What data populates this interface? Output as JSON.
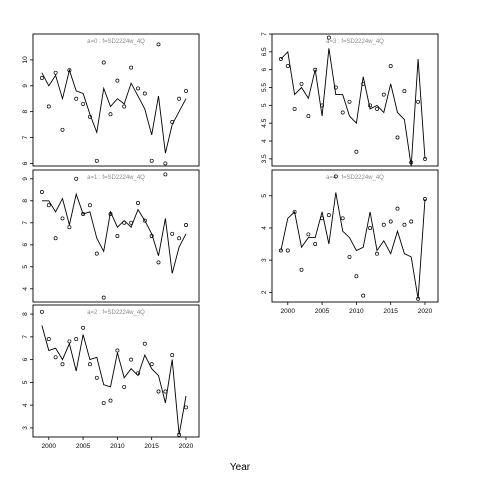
{
  "chart_data": {
    "xlabel": "Year",
    "panels": [
      {
        "type": "line",
        "title": "a=0 : f=SD2224w_4Q",
        "xlim": [
          1997.7,
          2021.9
        ],
        "ylim": [
          5.9,
          11.0
        ],
        "xticks": [],
        "yticks": [
          6,
          7,
          8,
          9,
          10
        ],
        "fit": {
          "x": [
            1999,
            2000,
            2001,
            2002,
            2003,
            2004,
            2005,
            2006,
            2007,
            2008,
            2009,
            2010,
            2011,
            2012,
            2013,
            2014,
            2015,
            2016,
            2017,
            2018,
            2019,
            2020
          ],
          "y": [
            9.5,
            9.0,
            9.4,
            8.5,
            9.6,
            8.8,
            8.7,
            7.9,
            7.2,
            8.9,
            8.2,
            8.5,
            8.3,
            9.1,
            8.6,
            8.1,
            7.1,
            8.6,
            6.4,
            7.5,
            8.0,
            8.5
          ]
        },
        "observed": {
          "x": [
            1999,
            2000,
            2001,
            2002,
            2003,
            2004,
            2005,
            2006,
            2007,
            2008,
            2009,
            2010,
            2011,
            2012,
            2013,
            2014,
            2015,
            2016,
            2017,
            2018,
            2019,
            2020
          ],
          "y": [
            9.3,
            8.2,
            9.5,
            7.3,
            9.6,
            8.5,
            8.3,
            7.8,
            6.1,
            9.9,
            7.9,
            9.2,
            8.2,
            9.7,
            8.9,
            8.7,
            6.1,
            10.6,
            6.0,
            7.6,
            8.5,
            8.8
          ]
        }
      },
      {
        "type": "line",
        "title": "a=1 : f=SD2224w_4Q",
        "xlim": [
          1997.7,
          2021.9
        ],
        "ylim": [
          3.4,
          9.4
        ],
        "xticks": [],
        "yticks": [
          4,
          5,
          6,
          7,
          8,
          9
        ],
        "fit": {
          "x": [
            1999,
            2000,
            2001,
            2002,
            2003,
            2004,
            2005,
            2006,
            2007,
            2008,
            2009,
            2010,
            2011,
            2012,
            2013,
            2014,
            2015,
            2016,
            2017,
            2018,
            2019,
            2020
          ],
          "y": [
            8.0,
            8.0,
            7.5,
            8.1,
            6.9,
            8.3,
            7.4,
            7.5,
            6.3,
            5.7,
            7.5,
            6.8,
            7.1,
            6.8,
            7.6,
            7.1,
            6.5,
            5.5,
            7.2,
            4.7,
            5.9,
            6.5
          ]
        },
        "observed": {
          "x": [
            1999,
            2000,
            2001,
            2002,
            2003,
            2004,
            2005,
            2006,
            2007,
            2008,
            2009,
            2010,
            2011,
            2012,
            2013,
            2014,
            2015,
            2016,
            2017,
            2018,
            2019,
            2020
          ],
          "y": [
            8.4,
            7.8,
            6.3,
            7.2,
            6.8,
            9.0,
            7.4,
            7.8,
            5.6,
            3.6,
            7.4,
            6.4,
            7.0,
            7.0,
            7.9,
            7.1,
            6.4,
            5.2,
            9.2,
            6.5,
            6.3,
            6.9
          ]
        }
      },
      {
        "type": "line",
        "title": "a=2 : f=SD2224w_4Q",
        "xlim": [
          1997.7,
          2021.9
        ],
        "ylim": [
          2.6,
          8.4
        ],
        "xticks": [
          2000,
          2005,
          2010,
          2015,
          2020
        ],
        "yticks": [
          3,
          4,
          5,
          6,
          7,
          8
        ],
        "fit": {
          "x": [
            1999,
            2000,
            2001,
            2002,
            2003,
            2004,
            2005,
            2006,
            2007,
            2008,
            2009,
            2010,
            2011,
            2012,
            2013,
            2014,
            2015,
            2016,
            2017,
            2018,
            2019,
            2020
          ],
          "y": [
            7.5,
            6.4,
            6.5,
            6.0,
            6.7,
            5.5,
            7.1,
            6.0,
            6.1,
            4.9,
            4.8,
            6.3,
            5.2,
            5.6,
            5.3,
            6.2,
            5.6,
            5.3,
            4.1,
            6.0,
            2.7,
            4.4
          ]
        },
        "observed": {
          "x": [
            1999,
            2000,
            2001,
            2002,
            2003,
            2004,
            2005,
            2006,
            2007,
            2008,
            2009,
            2010,
            2011,
            2012,
            2013,
            2014,
            2015,
            2016,
            2017,
            2018,
            2019,
            2020
          ],
          "y": [
            8.1,
            6.9,
            6.1,
            5.8,
            6.8,
            6.9,
            7.4,
            5.8,
            5.2,
            4.1,
            4.2,
            6.4,
            4.8,
            6.0,
            5.4,
            6.7,
            5.8,
            4.6,
            4.6,
            6.2,
            2.7,
            3.9
          ]
        }
      },
      {
        "type": "line",
        "title": "a=3 : f=SD2224w_4Q",
        "xlim": [
          1997.7,
          2021.9
        ],
        "ylim": [
          3.3,
          7.0
        ],
        "xticks": [],
        "yticks": [
          3.5,
          4.0,
          4.5,
          5.0,
          5.5,
          6.0,
          6.5,
          7.0
        ],
        "fit": {
          "x": [
            1999,
            2000,
            2001,
            2002,
            2003,
            2004,
            2005,
            2006,
            2007,
            2008,
            2009,
            2010,
            2011,
            2012,
            2013,
            2014,
            2015,
            2016,
            2017,
            2018,
            2019,
            2020
          ],
          "y": [
            6.3,
            6.5,
            5.3,
            5.5,
            5.2,
            6.0,
            4.7,
            6.6,
            5.3,
            5.3,
            4.7,
            4.5,
            5.8,
            4.9,
            5.0,
            4.8,
            5.6,
            4.8,
            4.6,
            3.3,
            6.3,
            3.5
          ]
        },
        "observed": {
          "x": [
            1999,
            2000,
            2001,
            2002,
            2003,
            2004,
            2005,
            2006,
            2007,
            2008,
            2009,
            2010,
            2011,
            2012,
            2013,
            2014,
            2015,
            2016,
            2017,
            2018,
            2019,
            2020
          ],
          "y": [
            6.3,
            6.1,
            4.9,
            5.6,
            4.7,
            6.0,
            5.0,
            6.9,
            5.5,
            4.8,
            5.1,
            3.7,
            5.6,
            5.0,
            4.9,
            5.3,
            6.1,
            4.1,
            5.4,
            3.4,
            5.1,
            3.5
          ]
        }
      },
      {
        "type": "line",
        "title": "a=4 : f=SD2224w_4Q",
        "xlim": [
          1997.7,
          2021.9
        ],
        "ylim": [
          1.7,
          5.8
        ],
        "xticks": [
          2000,
          2005,
          2010,
          2015,
          2020
        ],
        "yticks": [
          2,
          3,
          4,
          5
        ],
        "fit": {
          "x": [
            1999,
            2000,
            2001,
            2002,
            2003,
            2004,
            2005,
            2006,
            2007,
            2008,
            2009,
            2010,
            2011,
            2012,
            2013,
            2014,
            2015,
            2016,
            2017,
            2018,
            2019,
            2020
          ],
          "y": [
            3.3,
            4.3,
            4.5,
            3.4,
            3.7,
            3.7,
            4.5,
            3.5,
            5.1,
            3.9,
            3.7,
            3.3,
            3.4,
            4.5,
            3.3,
            3.6,
            3.2,
            3.9,
            3.2,
            3.1,
            1.8,
            4.9
          ]
        },
        "observed": {
          "x": [
            1999,
            2000,
            2001,
            2002,
            2003,
            2004,
            2005,
            2006,
            2007,
            2008,
            2009,
            2010,
            2011,
            2012,
            2013,
            2014,
            2015,
            2016,
            2017,
            2018,
            2019,
            2020
          ],
          "y": [
            3.3,
            3.3,
            4.5,
            2.7,
            3.8,
            3.5,
            4.3,
            4.4,
            5.6,
            4.3,
            3.1,
            2.5,
            1.9,
            4.0,
            3.2,
            4.1,
            4.2,
            4.6,
            4.1,
            4.2,
            1.8,
            4.9
          ]
        }
      }
    ]
  }
}
